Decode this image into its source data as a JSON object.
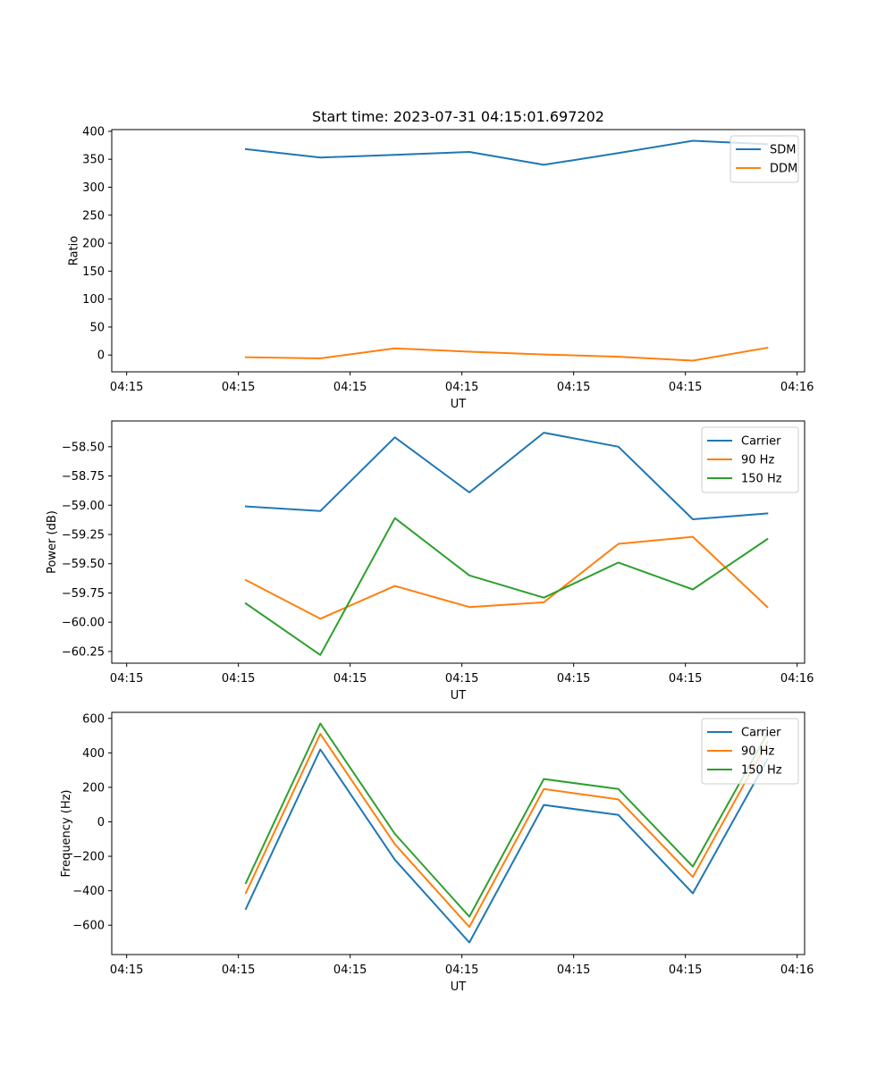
{
  "figure": {
    "title": "Start time: 2023-07-31 04:15:01.697202"
  },
  "chart_data": [
    {
      "type": "line",
      "title": "Start time: 2023-07-31 04:15:01.697202",
      "xlabel": "UT",
      "ylabel": "Ratio",
      "x_unit": "seconds after 04:15:00",
      "x": [
        2.0,
        3.0,
        4.0,
        5.0,
        6.0,
        7.0,
        8.0,
        9.0
      ],
      "xlim": [
        0.2,
        9.5
      ],
      "xticks": [
        0.4,
        1.9,
        3.4,
        4.9,
        6.4,
        7.9,
        9.4
      ],
      "xtick_labels": [
        "04:15",
        "04:15",
        "04:15",
        "04:15",
        "04:15",
        "04:15",
        "04:16"
      ],
      "ylim": [
        -30,
        403
      ],
      "yticks": [
        0,
        50,
        100,
        150,
        200,
        250,
        300,
        350,
        400
      ],
      "ytick_labels": [
        "0",
        "50",
        "100",
        "150",
        "200",
        "250",
        "300",
        "350",
        "400"
      ],
      "legend_position": "top-right",
      "series": [
        {
          "name": "SDM",
          "color": "#1f77b4",
          "values": [
            368,
            353,
            358,
            363,
            340,
            361,
            383,
            377
          ]
        },
        {
          "name": "DDM",
          "color": "#ff7f0e",
          "values": [
            -4,
            -6,
            12,
            6,
            1,
            -3,
            -10,
            13
          ]
        }
      ]
    },
    {
      "type": "line",
      "title": "",
      "xlabel": "UT",
      "ylabel": "Power (dB)",
      "x_unit": "seconds after 04:15:00",
      "x": [
        2.0,
        3.0,
        4.0,
        5.0,
        6.0,
        7.0,
        8.0,
        9.0
      ],
      "xlim": [
        0.2,
        9.5
      ],
      "xticks": [
        0.4,
        1.9,
        3.4,
        4.9,
        6.4,
        7.9,
        9.4
      ],
      "xtick_labels": [
        "04:15",
        "04:15",
        "04:15",
        "04:15",
        "04:15",
        "04:15",
        "04:16"
      ],
      "ylim": [
        -60.35,
        -58.28
      ],
      "yticks": [
        -60.25,
        -60.0,
        -59.75,
        -59.5,
        -59.25,
        -59.0,
        -58.75,
        -58.5
      ],
      "ytick_labels": [
        "−60.25",
        "−60.00",
        "−59.75",
        "−59.50",
        "−59.25",
        "−59.00",
        "−58.75",
        "−58.50"
      ],
      "legend_position": "top-right",
      "series": [
        {
          "name": "Carrier",
          "color": "#1f77b4",
          "values": [
            -59.01,
            -59.05,
            -58.42,
            -58.89,
            -58.38,
            -58.5,
            -59.12,
            -59.07
          ]
        },
        {
          "name": "90 Hz",
          "color": "#ff7f0e",
          "values": [
            -59.64,
            -59.97,
            -59.69,
            -59.87,
            -59.83,
            -59.33,
            -59.27,
            -59.87
          ]
        },
        {
          "name": "150 Hz",
          "color": "#2ca02c",
          "values": [
            -59.84,
            -60.28,
            -59.11,
            -59.6,
            -59.79,
            -59.49,
            -59.72,
            -59.29
          ]
        }
      ]
    },
    {
      "type": "line",
      "title": "",
      "xlabel": "UT",
      "ylabel": "Frequency (Hz)",
      "x_unit": "seconds after 04:15:00",
      "x": [
        2.0,
        3.0,
        4.0,
        5.0,
        6.0,
        7.0,
        8.0,
        9.0
      ],
      "xlim": [
        0.2,
        9.5
      ],
      "xticks": [
        0.4,
        1.9,
        3.4,
        4.9,
        6.4,
        7.9,
        9.4
      ],
      "xtick_labels": [
        "04:15",
        "04:15",
        "04:15",
        "04:15",
        "04:15",
        "04:15",
        "04:16"
      ],
      "ylim": [
        -770,
        635
      ],
      "yticks": [
        -600,
        -400,
        -200,
        0,
        200,
        400,
        600
      ],
      "ytick_labels": [
        "−600",
        "−400",
        "−200",
        "0",
        "200",
        "400",
        "600"
      ],
      "legend_position": "top-right",
      "series": [
        {
          "name": "Carrier",
          "color": "#1f77b4",
          "values": [
            -505,
            420,
            -220,
            -700,
            98,
            40,
            -415,
            362
          ]
        },
        {
          "name": "90 Hz",
          "color": "#ff7f0e",
          "values": [
            -413,
            510,
            -130,
            -610,
            190,
            130,
            -320,
            462
          ]
        },
        {
          "name": "150 Hz",
          "color": "#2ca02c",
          "values": [
            -355,
            570,
            -70,
            -550,
            248,
            190,
            -260,
            512
          ]
        }
      ]
    }
  ]
}
